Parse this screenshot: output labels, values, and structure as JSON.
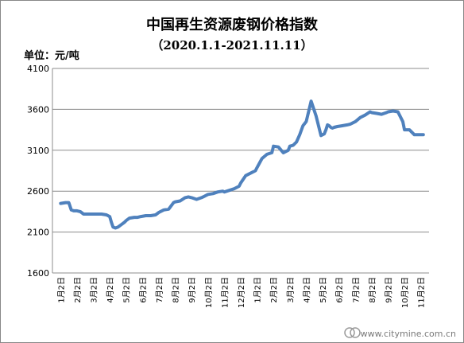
{
  "chart_data": {
    "type": "line",
    "title": "中国再生资源废钢价格指数",
    "subtitle": "（2020.1.1-2021.11.11）",
    "ylabel": "单位：元/吨",
    "xlabel": "",
    "ylim": [
      1600,
      4100
    ],
    "yticks": [
      1600,
      2100,
      2600,
      3100,
      3600,
      4100
    ],
    "grid": true,
    "legend": "none",
    "categories": [
      "1月2日",
      "2月2日",
      "3月2日",
      "4月2日",
      "5月2日",
      "6月2日",
      "7月2日",
      "8月2日",
      "9月2日",
      "10月2日",
      "11月2日",
      "12月2日",
      "1月2日",
      "2月2日",
      "3月2日",
      "4月2日",
      "5月2日",
      "6月2日",
      "7月2日",
      "8月2日",
      "9月2日",
      "10月2日",
      "11月2日"
    ],
    "series": [
      {
        "name": "",
        "color": "#4f81bd",
        "x": [
          0,
          0.3,
          0.5,
          0.65,
          0.8,
          1.0,
          1.2,
          1.4,
          1.55,
          1.7,
          2.0,
          2.5,
          2.8,
          3.0,
          3.1,
          3.2,
          3.35,
          3.5,
          3.7,
          3.9,
          4.0,
          4.2,
          4.5,
          4.7,
          4.9,
          5.2,
          5.5,
          5.8,
          6.0,
          6.3,
          6.6,
          6.9,
          7.0,
          7.3,
          7.6,
          7.8,
          8.0,
          8.3,
          8.6,
          8.8,
          9.0,
          9.3,
          9.6,
          9.9,
          10.0,
          10.3,
          10.6,
          10.9,
          11.0,
          11.3,
          11.6,
          11.9,
          12.0,
          12.3,
          12.6,
          12.9,
          13.0,
          13.3,
          13.6,
          13.9,
          14.0,
          14.2,
          14.4,
          14.6,
          14.8,
          15.0,
          15.3,
          15.6,
          15.9,
          16.1,
          16.2,
          16.25,
          16.3,
          16.4,
          16.5,
          16.6,
          16.7,
          16.9,
          17.2,
          17.5,
          17.7,
          17.9,
          18.0,
          18.3,
          18.6,
          18.9,
          19.0,
          19.3,
          19.6,
          19.9,
          20.0,
          20.3,
          20.6,
          20.9,
          21.0,
          21.3,
          21.6,
          21.8,
          21.9,
          22.0,
          22.1,
          22.15
        ],
        "values": [
          2450,
          2460,
          2460,
          2370,
          2360,
          2360,
          2350,
          2320,
          2320,
          2320,
          2320,
          2320,
          2310,
          2290,
          2220,
          2160,
          2150,
          2160,
          2190,
          2220,
          2240,
          2270,
          2280,
          2280,
          2290,
          2300,
          2300,
          2310,
          2340,
          2370,
          2380,
          2460,
          2470,
          2480,
          2520,
          2530,
          2520,
          2500,
          2520,
          2540,
          2560,
          2570,
          2590,
          2600,
          2590,
          2610,
          2630,
          2660,
          2700,
          2790,
          2820,
          2850,
          2890,
          3000,
          3050,
          3070,
          3150,
          3140,
          3070,
          3100,
          3150,
          3160,
          3200,
          3290,
          3400,
          3450,
          3700,
          3520,
          3280,
          3300,
          3350,
          3380,
          3410,
          3400,
          3380,
          3370,
          3380,
          3390,
          3400,
          3410,
          3420,
          3440,
          3450,
          3500,
          3530,
          3570,
          3560,
          3550,
          3540,
          3560,
          3570,
          3580,
          3570,
          3450,
          3350,
          3350,
          3290,
          3290,
          3290,
          3290,
          3290,
          3290
        ],
        "values_note": ""
      }
    ]
  },
  "unit_label": "单位：元/吨",
  "watermark": "www.citymine.com.cn"
}
